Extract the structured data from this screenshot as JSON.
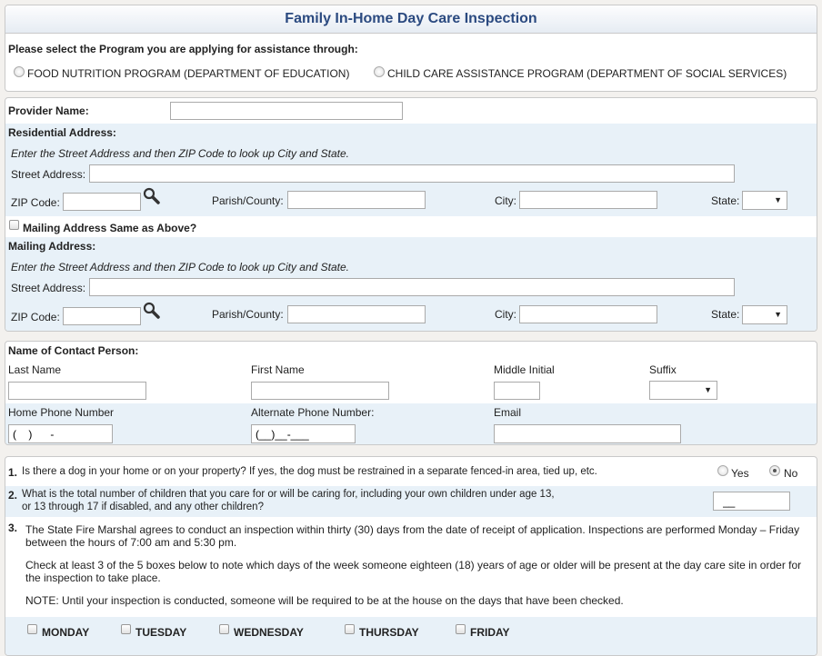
{
  "title": "Family In-Home Day Care Inspection",
  "program": {
    "prompt": "Please select the Program you are applying for assistance through:",
    "options": [
      "FOOD NUTRITION PROGRAM (DEPARTMENT OF EDUCATION)",
      "CHILD CARE ASSISTANCE PROGRAM (DEPARTMENT OF SOCIAL SERVICES)"
    ]
  },
  "provider": {
    "name_label": "Provider Name:",
    "name_value": ""
  },
  "residential": {
    "heading": "Residential Address:",
    "hint": "Enter the Street Address and then ZIP Code to look up City and State.",
    "street_label": "Street Address:",
    "zip_label": "ZIP Code:",
    "parish_label": "Parish/County:",
    "city_label": "City:",
    "state_label": "State:"
  },
  "mailing_same_label": "Mailing Address Same as Above?",
  "mailing": {
    "heading": "Mailing Address:",
    "hint": "Enter the Street Address and then ZIP Code to look up City and State.",
    "street_label": "Street Address:",
    "zip_label": "ZIP Code:",
    "parish_label": "Parish/County:",
    "city_label": "City:",
    "state_label": "State:"
  },
  "contact": {
    "heading": "Name of Contact Person:",
    "last": "Last Name",
    "first": "First Name",
    "middle": "Middle Initial",
    "suffix": "Suffix",
    "home_phone": "Home Phone Number",
    "home_phone_value": "(    )      -",
    "alt_phone": "Alternate Phone Number:",
    "alt_phone_value": "(__)__-___",
    "email": "Email"
  },
  "questions": {
    "q1_num": "1.",
    "q1": "Is there a dog in your home or on your property? If yes, the dog must be restrained in a separate fenced-in area, tied up, etc.",
    "yes": "Yes",
    "no": "No",
    "q1_selected": "No",
    "q2_num": "2.",
    "q2_line1": "What is the total number of children that you care for or will be caring for, including your own children under age 13,",
    "q2_line2": "or 13 through 17 if disabled, and any other children?",
    "q2_value": "__",
    "q3_num": "3.",
    "q3_p1a": "The State Fire Marshal agrees to conduct an inspection within thirty (30) days from the date of receipt of application. Inspections are performed Monday – Friday",
    "q3_p1b": "between the hours of 7:00 am and 5:30 pm.",
    "q3_p2a": "Check at least 3 of the 5 boxes below to note which days of the week someone eighteen (18) years of age or older will be present at the day care site in order for",
    "q3_p2b": "the inspection to take place.",
    "q3_p3": "NOTE: Until your inspection is conducted, someone will be required to be at the house on the days that have been checked.",
    "days": [
      "MONDAY",
      "TUESDAY",
      "WEDNESDAY",
      "THURSDAY",
      "FRIDAY"
    ]
  }
}
